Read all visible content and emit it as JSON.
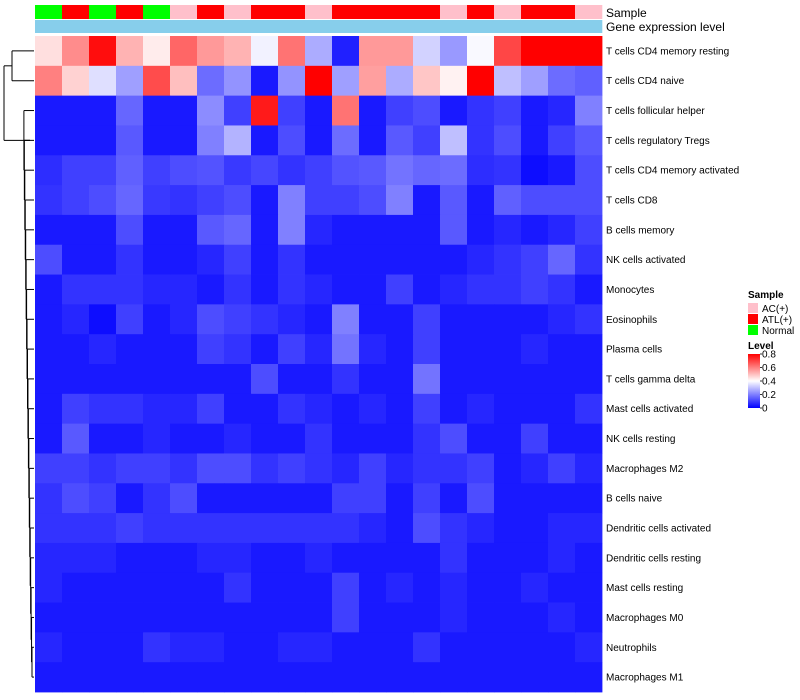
{
  "chart_data": {
    "type": "heatmap",
    "annotation_rows": [
      "Sample",
      "Gene expression level"
    ],
    "gene_expression_color": "#87CEEB",
    "sample_colors": {
      "AC(+)": "#FFC0CB",
      "ATL(+)": "#FF0000",
      "Normal": "#00FF00"
    },
    "samples": [
      "Normal",
      "ATL(+)",
      "Normal",
      "ATL(+)",
      "Normal",
      "AC(+)",
      "ATL(+)",
      "AC(+)",
      "ATL(+)",
      "ATL(+)",
      "AC(+)",
      "ATL(+)",
      "ATL(+)",
      "ATL(+)",
      "ATL(+)",
      "AC(+)",
      "ATL(+)",
      "AC(+)",
      "ATL(+)",
      "ATL(+)",
      "AC(+)"
    ],
    "rows": [
      "T cells CD4 memory resting",
      "T cells CD4 naive",
      "T cells follicular helper",
      "T cells regulatory  Tregs",
      "T cells CD4 memory activated",
      "T cells CD8",
      "B cells memory",
      "NK cells activated",
      "Monocytes",
      "Eosinophils",
      "Plasma cells",
      "T cells gamma delta",
      "Mast cells activated",
      "NK cells resting",
      "Macrophages M2",
      "B cells naive",
      "Dendritic cells activated",
      "Dendritic cells resting",
      "Mast cells resting",
      "Macrophages M0",
      "Neutrophils",
      "Macrophages M1"
    ],
    "values": [
      [
        0.45,
        0.58,
        0.78,
        0.52,
        0.43,
        0.64,
        0.56,
        0.52,
        0.38,
        0.62,
        0.27,
        0.05,
        0.56,
        0.56,
        0.33,
        0.24,
        0.39,
        0.69,
        0.8,
        0.8,
        0.8
      ],
      [
        0.6,
        0.47,
        0.35,
        0.25,
        0.68,
        0.5,
        0.17,
        0.23,
        0.04,
        0.23,
        0.8,
        0.25,
        0.55,
        0.27,
        0.49,
        0.42,
        0.8,
        0.3,
        0.25,
        0.17,
        0.15
      ],
      [
        0.04,
        0.04,
        0.04,
        0.16,
        0.04,
        0.04,
        0.22,
        0.1,
        0.76,
        0.1,
        0.04,
        0.62,
        0.04,
        0.1,
        0.12,
        0.04,
        0.08,
        0.1,
        0.04,
        0.06,
        0.2
      ],
      [
        0.04,
        0.04,
        0.04,
        0.14,
        0.04,
        0.04,
        0.2,
        0.28,
        0.04,
        0.12,
        0.04,
        0.17,
        0.04,
        0.14,
        0.1,
        0.3,
        0.08,
        0.12,
        0.04,
        0.1,
        0.14
      ],
      [
        0.07,
        0.1,
        0.1,
        0.15,
        0.1,
        0.12,
        0.13,
        0.09,
        0.11,
        0.08,
        0.1,
        0.13,
        0.14,
        0.18,
        0.16,
        0.17,
        0.07,
        0.08,
        0.02,
        0.04,
        0.12
      ],
      [
        0.08,
        0.1,
        0.12,
        0.16,
        0.09,
        0.08,
        0.1,
        0.12,
        0.04,
        0.2,
        0.1,
        0.1,
        0.12,
        0.2,
        0.04,
        0.14,
        0.04,
        0.15,
        0.12,
        0.12,
        0.12
      ],
      [
        0.04,
        0.04,
        0.04,
        0.12,
        0.04,
        0.04,
        0.14,
        0.16,
        0.04,
        0.2,
        0.06,
        0.04,
        0.04,
        0.04,
        0.04,
        0.14,
        0.04,
        0.06,
        0.04,
        0.06,
        0.1
      ],
      [
        0.12,
        0.04,
        0.04,
        0.08,
        0.04,
        0.04,
        0.06,
        0.1,
        0.04,
        0.08,
        0.04,
        0.04,
        0.04,
        0.04,
        0.04,
        0.04,
        0.06,
        0.08,
        0.1,
        0.16,
        0.08
      ],
      [
        0.04,
        0.08,
        0.08,
        0.08,
        0.06,
        0.06,
        0.04,
        0.08,
        0.04,
        0.08,
        0.06,
        0.04,
        0.04,
        0.1,
        0.04,
        0.06,
        0.08,
        0.08,
        0.1,
        0.08,
        0.04
      ],
      [
        0.04,
        0.06,
        0.02,
        0.1,
        0.04,
        0.06,
        0.12,
        0.1,
        0.08,
        0.06,
        0.04,
        0.2,
        0.04,
        0.04,
        0.1,
        0.04,
        0.04,
        0.04,
        0.04,
        0.06,
        0.08
      ],
      [
        0.04,
        0.04,
        0.06,
        0.04,
        0.04,
        0.04,
        0.1,
        0.08,
        0.04,
        0.1,
        0.06,
        0.18,
        0.06,
        0.04,
        0.1,
        0.04,
        0.04,
        0.04,
        0.06,
        0.04,
        0.04
      ],
      [
        0.04,
        0.04,
        0.04,
        0.04,
        0.04,
        0.04,
        0.04,
        0.04,
        0.12,
        0.04,
        0.04,
        0.08,
        0.04,
        0.04,
        0.18,
        0.04,
        0.04,
        0.04,
        0.04,
        0.04,
        0.04
      ],
      [
        0.04,
        0.1,
        0.08,
        0.08,
        0.06,
        0.06,
        0.1,
        0.04,
        0.04,
        0.08,
        0.06,
        0.04,
        0.06,
        0.04,
        0.1,
        0.04,
        0.06,
        0.04,
        0.04,
        0.04,
        0.08
      ],
      [
        0.04,
        0.14,
        0.04,
        0.04,
        0.06,
        0.04,
        0.04,
        0.06,
        0.04,
        0.04,
        0.08,
        0.04,
        0.04,
        0.04,
        0.08,
        0.12,
        0.04,
        0.04,
        0.1,
        0.04,
        0.04
      ],
      [
        0.1,
        0.1,
        0.08,
        0.1,
        0.1,
        0.08,
        0.12,
        0.12,
        0.08,
        0.1,
        0.08,
        0.06,
        0.1,
        0.06,
        0.08,
        0.08,
        0.1,
        0.04,
        0.06,
        0.1,
        0.06
      ],
      [
        0.08,
        0.12,
        0.1,
        0.04,
        0.08,
        0.12,
        0.04,
        0.04,
        0.04,
        0.04,
        0.04,
        0.1,
        0.1,
        0.04,
        0.1,
        0.04,
        0.12,
        0.04,
        0.04,
        0.04,
        0.04
      ],
      [
        0.08,
        0.08,
        0.08,
        0.1,
        0.08,
        0.08,
        0.08,
        0.08,
        0.08,
        0.08,
        0.08,
        0.08,
        0.06,
        0.04,
        0.12,
        0.08,
        0.06,
        0.04,
        0.04,
        0.06,
        0.06
      ],
      [
        0.06,
        0.06,
        0.06,
        0.04,
        0.04,
        0.04,
        0.06,
        0.06,
        0.04,
        0.04,
        0.06,
        0.04,
        0.04,
        0.04,
        0.04,
        0.08,
        0.04,
        0.04,
        0.04,
        0.06,
        0.04
      ],
      [
        0.06,
        0.04,
        0.04,
        0.04,
        0.04,
        0.04,
        0.04,
        0.08,
        0.04,
        0.04,
        0.04,
        0.1,
        0.04,
        0.06,
        0.04,
        0.06,
        0.04,
        0.04,
        0.06,
        0.04,
        0.04
      ],
      [
        0.04,
        0.04,
        0.04,
        0.04,
        0.04,
        0.04,
        0.04,
        0.04,
        0.04,
        0.04,
        0.04,
        0.1,
        0.04,
        0.04,
        0.04,
        0.06,
        0.04,
        0.04,
        0.04,
        0.06,
        0.04
      ],
      [
        0.06,
        0.04,
        0.04,
        0.04,
        0.08,
        0.06,
        0.06,
        0.04,
        0.04,
        0.06,
        0.06,
        0.04,
        0.04,
        0.04,
        0.08,
        0.04,
        0.04,
        0.04,
        0.04,
        0.04,
        0.06
      ],
      [
        0.04,
        0.04,
        0.04,
        0.04,
        0.04,
        0.04,
        0.04,
        0.04,
        0.04,
        0.04,
        0.04,
        0.04,
        0.04,
        0.04,
        0.04,
        0.04,
        0.04,
        0.04,
        0.04,
        0.04,
        0.04
      ]
    ],
    "legend": {
      "sample_title": "Sample",
      "sample_entries": [
        {
          "label": "AC(+)",
          "color": "#FFC0CB"
        },
        {
          "label": "ATL(+)",
          "color": "#FF0000"
        },
        {
          "label": "Normal",
          "color": "#00FF00"
        }
      ],
      "level_title": "Level",
      "level_ticks": [
        "0.8",
        "0.6",
        "0.4",
        "0.2",
        "0"
      ],
      "level_tick_values": [
        0.8,
        0.6,
        0.4,
        0.2,
        0
      ],
      "level_range": [
        0,
        0.8
      ],
      "color_low": "#0000FF",
      "color_mid": "#FFFFFF",
      "color_high": "#FF0000",
      "mid_value": 0.4
    }
  }
}
